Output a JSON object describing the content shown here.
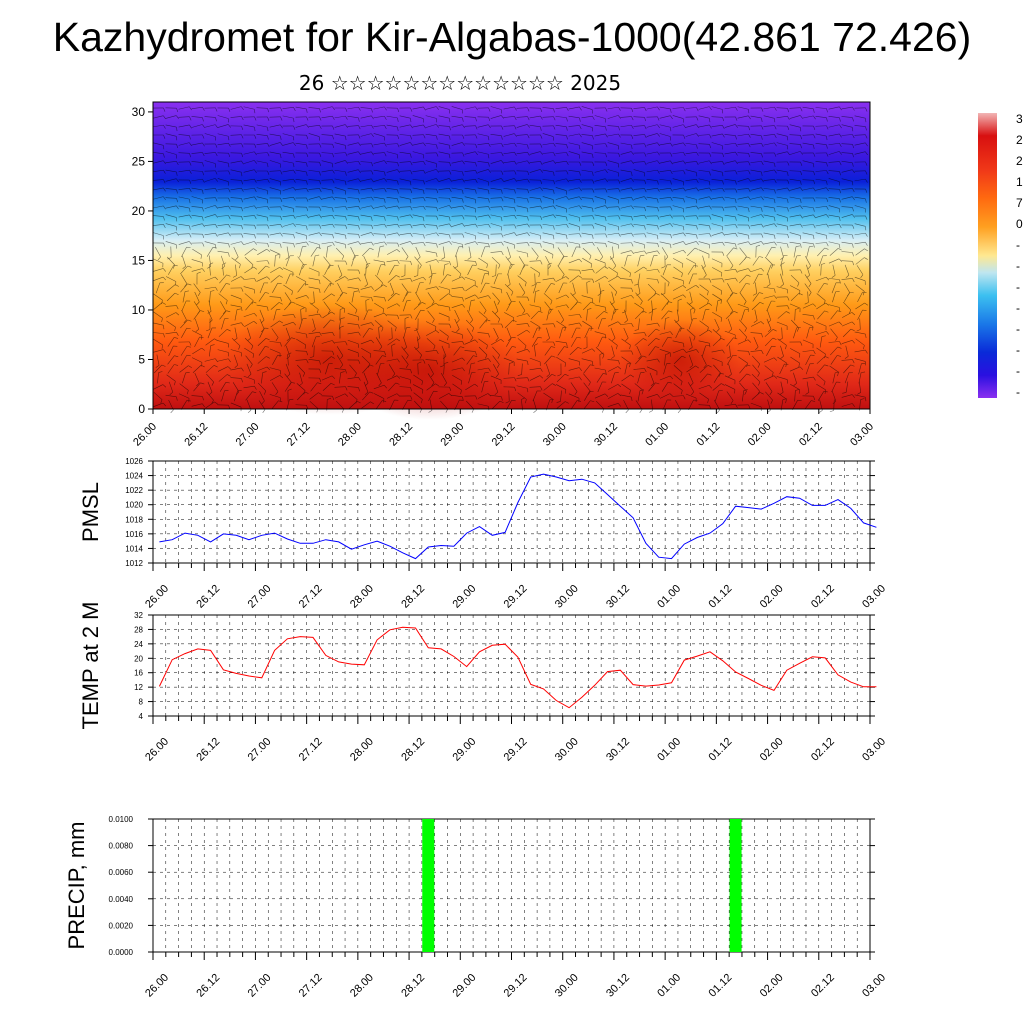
{
  "title": "Kazhydromet for Kir-Algabas-1000(42.861 72.426)",
  "subtitle": "26 ☆☆☆☆☆☆☆☆☆☆☆☆☆ 2025",
  "time_labels": [
    "26.00",
    "26.12",
    "27.00",
    "27.12",
    "28.00",
    "28.12",
    "29.00",
    "29.12",
    "30.00",
    "30.12",
    "01.00",
    "01.12",
    "02.00",
    "02.12",
    "03.00"
  ],
  "colorbar": {
    "labels": [
      "3",
      "2",
      "2",
      "1",
      "7",
      "0",
      "-",
      "-",
      "-",
      "-",
      "-",
      "-",
      "-",
      "-"
    ],
    "colors": [
      "#f2b5b5",
      "#d81010",
      "#f03818",
      "#ff6a10",
      "#ffa020",
      "#ffe890",
      "#bfe6f0",
      "#3cc0f0",
      "#1a78e8",
      "#0a2ad8",
      "#2a10e0",
      "#6a20f0",
      "#8a30f0"
    ]
  },
  "chart_data": [
    {
      "type": "heatmap",
      "title": "",
      "xlabel": "",
      "ylabel": "",
      "x_categories": [
        "26.00",
        "26.12",
        "27.00",
        "27.12",
        "28.00",
        "28.12",
        "29.00",
        "29.12",
        "30.00",
        "30.12",
        "01.00",
        "01.12",
        "02.00",
        "02.12",
        "03.00"
      ],
      "y_ticks": [
        0,
        5,
        10,
        15,
        20,
        25,
        30
      ],
      "ylim": [
        0,
        31
      ],
      "description_values": {
        "color_bands_by_height": [
          {
            "height": 0,
            "value": 25
          },
          {
            "height": 5,
            "value": 18
          },
          {
            "height": 10,
            "value": 7
          },
          {
            "height": 15,
            "value": -5
          },
          {
            "height": 20,
            "value": -30
          },
          {
            "height": 23,
            "value": -50
          },
          {
            "height": 30,
            "value": -55
          }
        ]
      },
      "overlay": "wind barbs"
    },
    {
      "type": "line",
      "ylabel": "PMSL",
      "ylim": [
        1012,
        1026
      ],
      "y_ticks": [
        1012,
        1014,
        1016,
        1018,
        1020,
        1022,
        1024,
        1026
      ],
      "color": "#0000ff",
      "x": [
        0,
        1,
        2,
        3,
        4,
        5,
        6,
        7,
        8,
        9,
        10,
        11,
        12,
        13,
        14,
        15,
        16,
        17,
        18,
        19,
        20,
        21,
        22,
        23,
        24,
        25,
        26,
        27,
        28,
        29,
        30,
        31,
        32,
        33,
        34,
        35,
        36,
        37,
        38,
        39,
        40,
        41,
        42,
        43,
        44,
        45,
        46,
        47,
        48,
        49,
        50,
        51,
        52,
        53,
        54,
        55,
        56
      ],
      "values": [
        1014.9,
        1015.2,
        1016.1,
        1015.8,
        1014.9,
        1016.0,
        1015.8,
        1015.2,
        1015.8,
        1016.1,
        1015.3,
        1014.7,
        1014.7,
        1015.2,
        1014.9,
        1013.9,
        1014.5,
        1015.0,
        1014.3,
        1013.4,
        1012.6,
        1014.2,
        1014.4,
        1014.3,
        1016.1,
        1017.0,
        1015.8,
        1016.2,
        1020.3,
        1023.8,
        1024.2,
        1023.8,
        1023.3,
        1023.5,
        1023.0,
        1021.4,
        1019.8,
        1018.2,
        1014.7,
        1012.8,
        1012.6,
        1014.6,
        1015.5,
        1016.1,
        1017.4,
        1019.8,
        1019.6,
        1019.4,
        1020.2,
        1021.1,
        1020.9,
        1019.9,
        1019.9,
        1020.7,
        1019.5,
        1017.5,
        1016.9
      ]
    },
    {
      "type": "line",
      "ylabel": "TEMP at 2 M",
      "ylim": [
        4,
        32
      ],
      "y_ticks": [
        4,
        8,
        12,
        16,
        20,
        24,
        28,
        32
      ],
      "color": "#ff0000",
      "x": [
        0,
        1,
        2,
        3,
        4,
        5,
        6,
        7,
        8,
        9,
        10,
        11,
        12,
        13,
        14,
        15,
        16,
        17,
        18,
        19,
        20,
        21,
        22,
        23,
        24,
        25,
        26,
        27,
        28,
        29,
        30,
        31,
        32,
        33,
        34,
        35,
        36,
        37,
        38,
        39,
        40,
        41,
        42,
        43,
        44,
        45,
        46,
        47,
        48,
        49,
        50,
        51,
        52,
        53,
        54,
        55,
        56
      ],
      "values": [
        12.2,
        19.6,
        21.3,
        22.6,
        22.2,
        16.8,
        15.8,
        15.1,
        14.6,
        22.2,
        25.4,
        26.0,
        25.8,
        20.8,
        19.0,
        18.4,
        18.2,
        25.1,
        27.9,
        28.6,
        28.4,
        22.9,
        22.6,
        20.5,
        17.7,
        21.8,
        23.6,
        23.9,
        20.3,
        12.8,
        11.5,
        8.3,
        6.3,
        9.2,
        12.5,
        16.3,
        16.7,
        12.7,
        12.3,
        12.6,
        13.2,
        19.5,
        20.6,
        21.8,
        19.3,
        16.2,
        14.4,
        12.5,
        11.1,
        16.7,
        18.6,
        20.4,
        20.1,
        15.4,
        13.4,
        12.1,
        12.1
      ]
    },
    {
      "type": "bar",
      "ylabel": "PRECIP, mm",
      "ylim": [
        0,
        0.01
      ],
      "y_tick_labels": [
        "0.0000",
        "0.0020",
        "0.0040",
        "0.0060",
        "0.0080",
        "0.0100"
      ],
      "color": "#00ff00",
      "bars": [
        {
          "x": 21,
          "value": 0.01
        },
        {
          "x": 45,
          "value": 0.01
        }
      ]
    }
  ]
}
